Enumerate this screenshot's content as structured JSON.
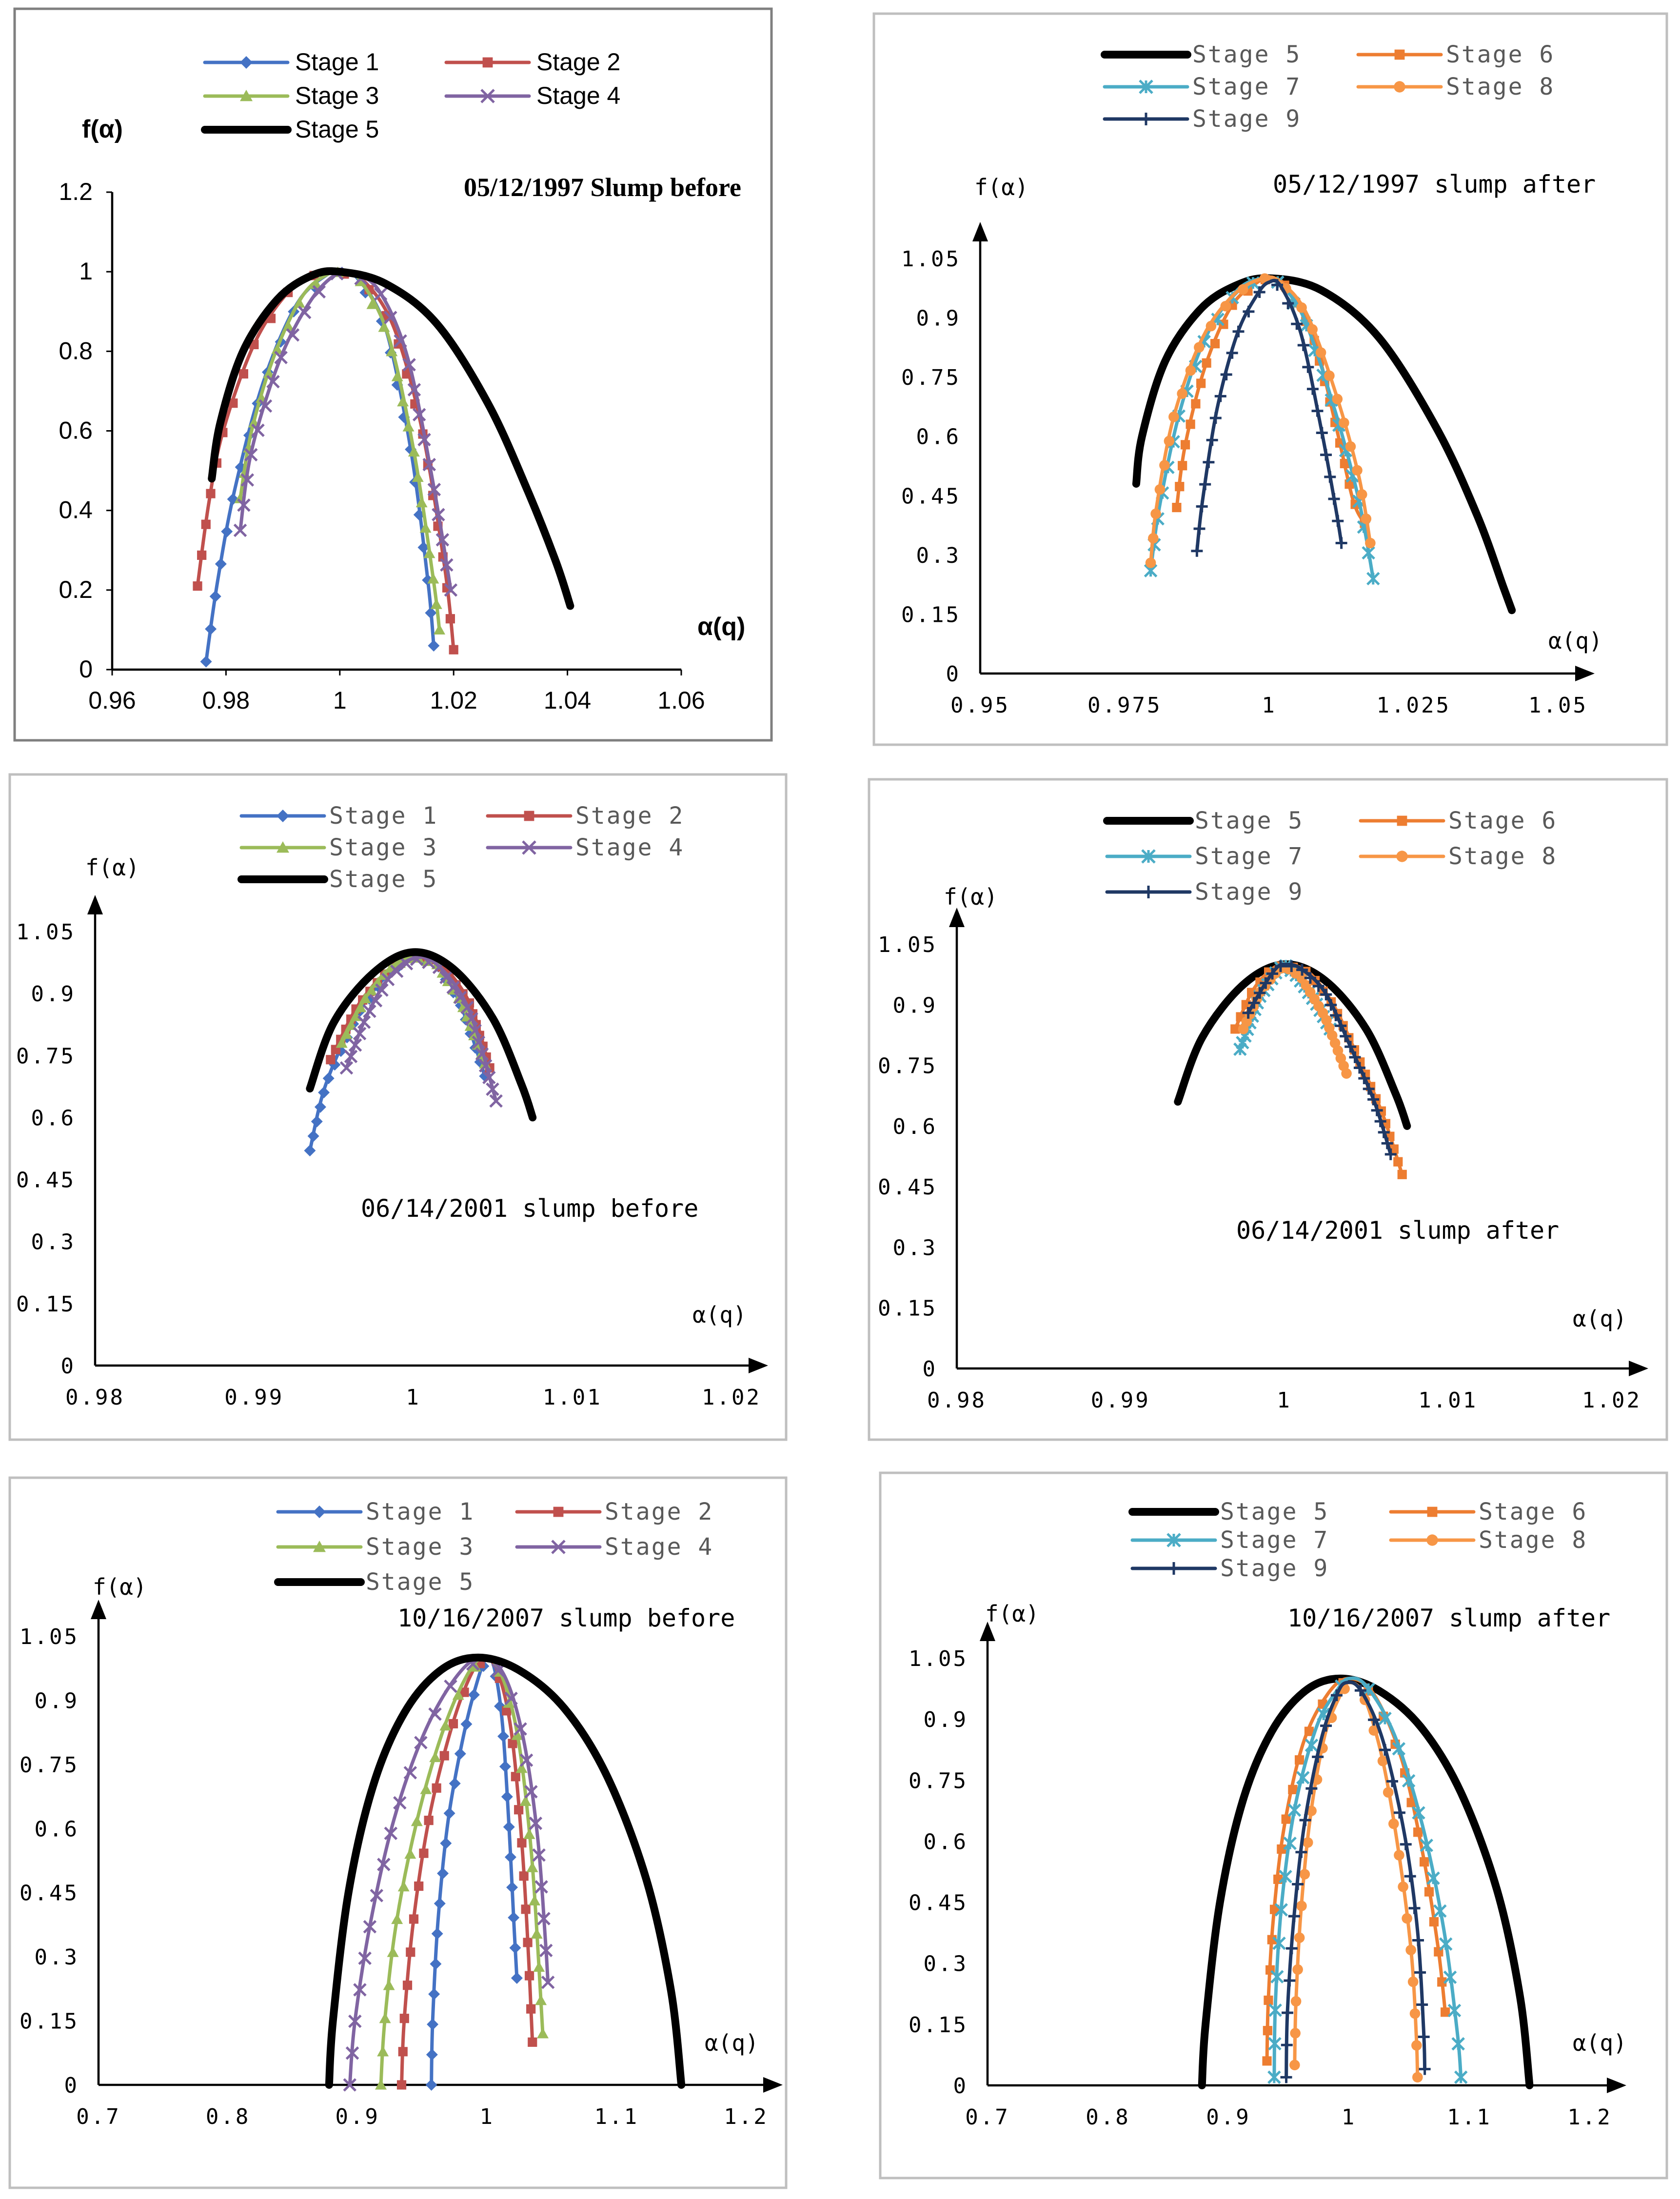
{
  "colors": {
    "Stage 1": "#4472c4",
    "Stage 2": "#c0504d",
    "Stage 3": "#9bbb59",
    "Stage 4": "#8064a2",
    "Stage 5": "#000000",
    "Stage 6": "#ed7d31",
    "Stage 7": "#4bacc6",
    "Stage 8": "#f79646",
    "Stage 9": "#1f3864"
  },
  "chart_data": [
    {
      "type": "line",
      "title": "05/12/1997 Slump before",
      "xlabel": "α(q)",
      "ylabel": "f(α)",
      "xlim": [
        0.96,
        1.06
      ],
      "ylim": [
        0,
        1.2
      ],
      "xticks": [
        "0.96",
        "0.98",
        "1",
        "1.02",
        "1.04",
        "1.06"
      ],
      "yticks": [
        "0",
        "0.2",
        "0.4",
        "0.6",
        "0.8",
        "1",
        "1.2"
      ],
      "series": [
        {
          "name": "Stage 1",
          "x": [
            0.9765,
            0.9785,
            0.9815,
            0.9865,
            0.9925,
            0.998,
            1.0,
            1.003,
            1.008,
            1.0125,
            1.0155,
            1.0165
          ],
          "y": [
            0.02,
            0.22,
            0.45,
            0.72,
            0.92,
            0.995,
            1.0,
            0.985,
            0.86,
            0.55,
            0.22,
            0.06
          ]
        },
        {
          "name": "Stage 2",
          "x": [
            0.975,
            0.977,
            0.9795,
            0.985,
            0.991,
            0.996,
            0.9995,
            1.004,
            1.0095,
            1.0145,
            1.0185,
            1.02
          ],
          "y": [
            0.21,
            0.42,
            0.6,
            0.82,
            0.95,
            0.995,
            1.0,
            0.98,
            0.86,
            0.6,
            0.25,
            0.05
          ]
        },
        {
          "name": "Stage 3",
          "x": [
            0.9825,
            0.9845,
            0.9885,
            0.9935,
            0.998,
            1.0005,
            1.0035,
            1.0085,
            1.013,
            1.0165,
            1.0175
          ],
          "y": [
            0.43,
            0.6,
            0.79,
            0.94,
            0.995,
            1.0,
            0.98,
            0.84,
            0.55,
            0.22,
            0.1
          ]
        },
        {
          "name": "Stage 4",
          "x": [
            0.9825,
            0.9845,
            0.9895,
            0.995,
            0.9995,
            1.0025,
            1.007,
            1.012,
            1.0165,
            1.0195
          ],
          "y": [
            0.35,
            0.55,
            0.78,
            0.93,
            0.995,
            0.995,
            0.95,
            0.78,
            0.46,
            0.2
          ]
        },
        {
          "name": "Stage 5",
          "x": [
            0.9775,
            0.979,
            0.983,
            0.989,
            0.995,
            1.0,
            1.008,
            1.017,
            1.026,
            1.033,
            1.038,
            1.0405
          ],
          "y": [
            0.48,
            0.62,
            0.8,
            0.93,
            0.99,
            1.0,
            0.97,
            0.87,
            0.67,
            0.45,
            0.27,
            0.16
          ]
        }
      ]
    },
    {
      "type": "line",
      "title": "05/12/1997 slump after",
      "xlabel": "α(q)",
      "ylabel": "f(α)",
      "xlim": [
        0.95,
        1.05
      ],
      "ylim": [
        0,
        1.05
      ],
      "xticks": [
        "0.95",
        "0.975",
        "1",
        "1.025",
        "1.05"
      ],
      "yticks": [
        "0",
        "0.15",
        "0.3",
        "0.45",
        "0.6",
        "0.75",
        "0.9",
        "1.05"
      ],
      "series": [
        {
          "name": "Stage 5",
          "x": [
            0.977,
            0.978,
            0.982,
            0.988,
            0.994,
            1.0,
            1.009,
            1.019,
            1.029,
            1.036,
            1.0405,
            1.042
          ],
          "y": [
            0.48,
            0.6,
            0.79,
            0.92,
            0.98,
            1.0,
            0.97,
            0.85,
            0.62,
            0.4,
            0.22,
            0.16
          ]
        },
        {
          "name": "Stage 6",
          "x": [
            0.984,
            0.9855,
            0.989,
            0.9935,
            0.998,
            1.0,
            1.003,
            1.0075,
            1.0115,
            1.0145,
            1.0165
          ],
          "y": [
            0.42,
            0.58,
            0.78,
            0.93,
            0.99,
            1.0,
            0.98,
            0.86,
            0.63,
            0.44,
            0.38
          ]
        },
        {
          "name": "Stage 7",
          "x": [
            0.9795,
            0.981,
            0.9845,
            0.989,
            0.9945,
            0.999,
            1.0015,
            1.006,
            1.0115,
            1.0155,
            1.018
          ],
          "y": [
            0.26,
            0.42,
            0.66,
            0.85,
            0.97,
            1.0,
            0.99,
            0.9,
            0.66,
            0.44,
            0.24
          ]
        },
        {
          "name": "Stage 8",
          "x": [
            0.9795,
            0.9805,
            0.9835,
            0.9885,
            0.994,
            0.999,
            1.002,
            1.0065,
            1.0115,
            1.0155,
            1.0175
          ],
          "y": [
            0.28,
            0.42,
            0.65,
            0.85,
            0.96,
            1.0,
            0.99,
            0.91,
            0.71,
            0.5,
            0.33
          ]
        },
        {
          "name": "Stage 9",
          "x": [
            0.9875,
            0.9885,
            0.991,
            0.9945,
            0.998,
            1.0,
            1.002,
            1.0055,
            1.009,
            1.0115,
            1.0125
          ],
          "y": [
            0.31,
            0.44,
            0.67,
            0.86,
            0.96,
            0.99,
            0.98,
            0.86,
            0.62,
            0.42,
            0.33
          ]
        }
      ]
    },
    {
      "type": "line",
      "title": "06/14/2001 slump before",
      "xlabel": "α(q)",
      "ylabel": "f(α)",
      "xlim": [
        0.98,
        1.02
      ],
      "ylim": [
        0,
        1.05
      ],
      "xticks": [
        "0.98",
        "0.99",
        "1",
        "1.01",
        "1.02"
      ],
      "yticks": [
        "0",
        "0.15",
        "0.3",
        "0.45",
        "0.6",
        "0.75",
        "0.9",
        "1.05"
      ],
      "series": [
        {
          "name": "Stage 1",
          "x": [
            0.9935,
            0.9945,
            0.9965,
            0.9985,
            1.0,
            1.0015,
            1.003,
            1.0045
          ],
          "y": [
            0.52,
            0.68,
            0.85,
            0.95,
            0.99,
            0.97,
            0.87,
            0.7
          ]
        },
        {
          "name": "Stage 2",
          "x": [
            0.9948,
            0.9965,
            0.9985,
            1.0,
            1.0015,
            1.0035,
            1.0048
          ],
          "y": [
            0.74,
            0.87,
            0.96,
            0.995,
            0.98,
            0.88,
            0.72
          ]
        },
        {
          "name": "Stage 3",
          "x": [
            0.9955,
            0.997,
            0.9985,
            1.0,
            1.0015,
            1.003,
            1.0045
          ],
          "y": [
            0.78,
            0.89,
            0.96,
            0.99,
            0.97,
            0.88,
            0.73
          ]
        },
        {
          "name": "Stage 4",
          "x": [
            0.9958,
            0.997,
            0.9985,
            1.0,
            1.0015,
            1.0035,
            1.0052
          ],
          "y": [
            0.72,
            0.84,
            0.94,
            0.985,
            0.97,
            0.86,
            0.64
          ]
        },
        {
          "name": "Stage 5",
          "x": [
            0.9935,
            0.995,
            0.9975,
            1.0,
            1.0025,
            1.005,
            1.0068,
            1.0075
          ],
          "y": [
            0.67,
            0.83,
            0.95,
            1.0,
            0.96,
            0.84,
            0.68,
            0.6
          ]
        }
      ]
    },
    {
      "type": "line",
      "title": "06/14/2001 slump after",
      "xlabel": "α(q)",
      "ylabel": "f(α)",
      "xlim": [
        0.98,
        1.02
      ],
      "ylim": [
        0,
        1.05
      ],
      "xticks": [
        "0.98",
        "0.99",
        "1",
        "1.01",
        "1.02"
      ],
      "yticks": [
        "0",
        "0.15",
        "0.3",
        "0.45",
        "0.6",
        "0.75",
        "0.9",
        "1.05"
      ],
      "series": [
        {
          "name": "Stage 5",
          "x": [
            0.9935,
            0.995,
            0.9975,
            1.0,
            1.0025,
            1.005,
            1.0068,
            1.0075
          ],
          "y": [
            0.66,
            0.82,
            0.95,
            1.0,
            0.96,
            0.84,
            0.68,
            0.6
          ]
        },
        {
          "name": "Stage 6",
          "x": [
            0.997,
            0.998,
            0.999,
            1.0,
            1.0015,
            1.003,
            1.0045,
            1.006,
            1.0072
          ],
          "y": [
            0.84,
            0.93,
            0.98,
            1.0,
            0.98,
            0.9,
            0.77,
            0.63,
            0.48
          ]
        },
        {
          "name": "Stage 7",
          "x": [
            0.9973,
            0.9985,
            0.9995,
            1.0,
            1.0008,
            1.002,
            1.0028
          ],
          "y": [
            0.79,
            0.92,
            0.98,
            1.0,
            0.97,
            0.9,
            0.84
          ]
        },
        {
          "name": "Stage 8",
          "x": [
            0.9975,
            0.9985,
            0.9995,
            1.0,
            1.001,
            1.0025,
            1.0038
          ],
          "y": [
            0.84,
            0.93,
            0.98,
            0.995,
            0.97,
            0.87,
            0.73
          ]
        },
        {
          "name": "Stage 9",
          "x": [
            0.9978,
            0.9988,
            0.9995,
            1.0,
            1.001,
            1.0025,
            1.004,
            1.0055,
            1.0065
          ],
          "y": [
            0.88,
            0.95,
            0.99,
            1.0,
            0.99,
            0.93,
            0.8,
            0.66,
            0.53
          ]
        }
      ]
    },
    {
      "type": "line",
      "title": "10/16/2007 slump before",
      "xlabel": "α(q)",
      "ylabel": "f(α)",
      "xlim": [
        0.7,
        1.2
      ],
      "ylim": [
        0,
        1.05
      ],
      "xticks": [
        "0.7",
        "0.8",
        "0.9",
        "1",
        "1.1",
        "1.2"
      ],
      "yticks": [
        "0",
        "0.15",
        "0.3",
        "0.45",
        "0.6",
        "0.75",
        "0.9",
        "1.05"
      ],
      "series": [
        {
          "name": "Stage 1",
          "x": [
            0.957,
            0.958,
            0.962,
            0.97,
            0.982,
            0.993,
            1.0,
            1.006,
            1.012,
            1.017,
            1.021,
            1.023
          ],
          "y": [
            0.0,
            0.15,
            0.38,
            0.62,
            0.82,
            0.95,
            1.0,
            0.97,
            0.84,
            0.6,
            0.36,
            0.25
          ]
        },
        {
          "name": "Stage 2",
          "x": [
            0.934,
            0.936,
            0.943,
            0.955,
            0.971,
            0.986,
            0.998,
            1.009,
            1.019,
            1.027,
            1.032,
            1.035
          ],
          "y": [
            0.0,
            0.15,
            0.38,
            0.62,
            0.82,
            0.95,
            1.0,
            0.96,
            0.82,
            0.56,
            0.3,
            0.1
          ]
        },
        {
          "name": "Stage 3",
          "x": [
            0.918,
            0.921,
            0.93,
            0.946,
            0.965,
            0.983,
            0.997,
            1.011,
            1.024,
            1.034,
            1.04,
            1.043
          ],
          "y": [
            0.0,
            0.15,
            0.38,
            0.62,
            0.82,
            0.95,
            1.0,
            0.96,
            0.81,
            0.55,
            0.28,
            0.12
          ]
        },
        {
          "name": "Stage 4",
          "x": [
            0.894,
            0.898,
            0.91,
            0.928,
            0.951,
            0.975,
            0.995,
            1.013,
            1.028,
            1.039,
            1.045,
            1.047
          ],
          "y": [
            0.0,
            0.15,
            0.38,
            0.62,
            0.82,
            0.95,
            1.0,
            0.96,
            0.81,
            0.58,
            0.34,
            0.24
          ]
        },
        {
          "name": "Stage 5",
          "x": [
            0.878,
            0.881,
            0.893,
            0.912,
            0.936,
            0.964,
            0.993,
            1.025,
            1.06,
            1.093,
            1.123,
            1.142,
            1.15
          ],
          "y": [
            0.0,
            0.15,
            0.45,
            0.7,
            0.87,
            0.97,
            1.0,
            0.97,
            0.88,
            0.72,
            0.48,
            0.22,
            0.0
          ]
        }
      ]
    },
    {
      "type": "line",
      "title": "10/16/2007 slump after",
      "xlabel": "α(q)",
      "ylabel": "f(α)",
      "xlim": [
        0.7,
        1.2
      ],
      "ylim": [
        0,
        1.05
      ],
      "xticks": [
        "0.7",
        "0.8",
        "0.9",
        "1",
        "1.1",
        "1.2"
      ],
      "yticks": [
        "0",
        "0.15",
        "0.3",
        "0.45",
        "0.6",
        "0.75",
        "0.9",
        "1.05"
      ],
      "series": [
        {
          "name": "Stage 5",
          "x": [
            0.878,
            0.881,
            0.893,
            0.912,
            0.936,
            0.964,
            0.993,
            1.025,
            1.06,
            1.093,
            1.123,
            1.142,
            1.15
          ],
          "y": [
            0.0,
            0.15,
            0.45,
            0.7,
            0.87,
            0.97,
            1.0,
            0.97,
            0.88,
            0.72,
            0.48,
            0.22,
            0.0
          ]
        },
        {
          "name": "Stage 6",
          "x": [
            0.932,
            0.933,
            0.937,
            0.946,
            0.962,
            0.982,
            1.0,
            1.021,
            1.044,
            1.062,
            1.074,
            1.08
          ],
          "y": [
            0.06,
            0.2,
            0.4,
            0.63,
            0.84,
            0.96,
            1.0,
            0.96,
            0.8,
            0.56,
            0.34,
            0.18
          ]
        },
        {
          "name": "Stage 7",
          "x": [
            0.938,
            0.939,
            0.944,
            0.955,
            0.973,
            0.99,
            1.0,
            1.015,
            1.038,
            1.061,
            1.079,
            1.09,
            1.093
          ],
          "y": [
            0.02,
            0.2,
            0.44,
            0.68,
            0.88,
            0.97,
            1.0,
            0.98,
            0.86,
            0.64,
            0.38,
            0.13,
            0.02
          ]
        },
        {
          "name": "Stage 8",
          "x": [
            0.955,
            0.956,
            0.96,
            0.968,
            0.98,
            0.993,
            1.0,
            1.012,
            1.028,
            1.042,
            1.052,
            1.056,
            1.057
          ],
          "y": [
            0.05,
            0.2,
            0.42,
            0.66,
            0.86,
            0.96,
            0.99,
            0.96,
            0.8,
            0.56,
            0.32,
            0.12,
            0.02
          ]
        },
        {
          "name": "Stage 9",
          "x": [
            0.948,
            0.949,
            0.954,
            0.963,
            0.977,
            0.99,
            0.998,
            1.01,
            1.028,
            1.046,
            1.057,
            1.062,
            1.063
          ],
          "y": [
            0.02,
            0.18,
            0.4,
            0.64,
            0.85,
            0.96,
            0.99,
            0.97,
            0.85,
            0.62,
            0.38,
            0.14,
            0.04
          ]
        }
      ]
    }
  ]
}
